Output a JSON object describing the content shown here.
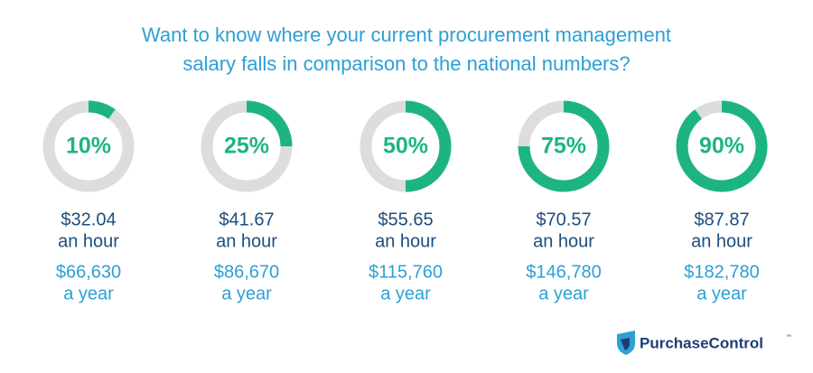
{
  "title": [
    "Want to know where your current procurement management",
    "salary falls in comparison to the national numbers?"
  ],
  "chart_data": [
    {
      "type": "donut",
      "values": [
        10
      ],
      "value_labels": [
        "10%"
      ],
      "color": "#1db57f",
      "track_color": "#dddddd"
    },
    {
      "type": "donut",
      "values": [
        25
      ],
      "value_labels": [
        "25%"
      ],
      "color": "#1db57f",
      "track_color": "#dddddd"
    },
    {
      "type": "donut",
      "values": [
        50
      ],
      "value_labels": [
        "50%"
      ],
      "color": "#1db57f",
      "track_color": "#dddddd"
    },
    {
      "type": "donut",
      "values": [
        75
      ],
      "value_labels": [
        "75%"
      ],
      "color": "#1db57f",
      "track_color": "#dddddd"
    },
    {
      "type": "donut",
      "values": [
        90
      ],
      "value_labels": [
        "90%"
      ],
      "color": "#1db57f",
      "track_color": "#dddddd"
    }
  ],
  "wages": [
    {
      "hourly": "$32.04",
      "hourly_unit": "an hour",
      "yearly": "$66,630",
      "yearly_unit": "a year"
    },
    {
      "hourly": "$41.67",
      "hourly_unit": "an hour",
      "yearly": "$86,670",
      "yearly_unit": "a year"
    },
    {
      "hourly": "$55.65",
      "hourly_unit": "an hour",
      "yearly": "$115,760",
      "yearly_unit": "a year"
    },
    {
      "hourly": "$70.57",
      "hourly_unit": "an hour",
      "yearly": "$146,780",
      "yearly_unit": "a year"
    },
    {
      "hourly": "$87.87",
      "hourly_unit": "an hour",
      "yearly": "$182,780",
      "yearly_unit": "a year"
    }
  ],
  "logo": {
    "text": "PurchaseControl",
    "tm": "™"
  }
}
